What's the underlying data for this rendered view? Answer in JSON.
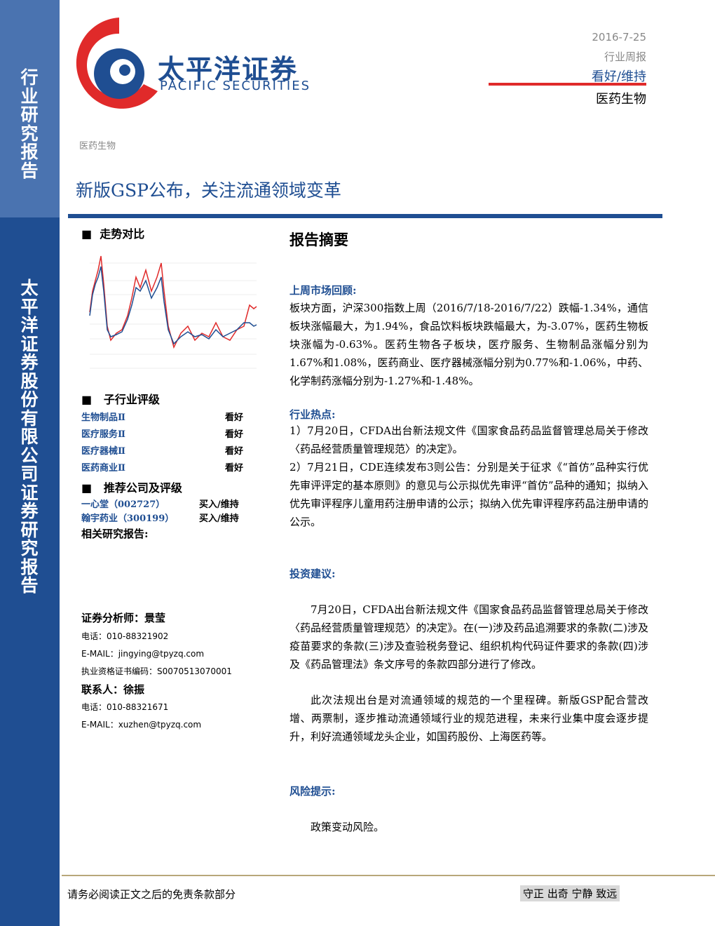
{
  "sidebar": {
    "top": "行业研究报告",
    "bottom": "太平洋证券股份有限公司证券研究报告"
  },
  "logo": {
    "cn": "太平洋证券",
    "en": "PACIFIC SECURITIES"
  },
  "header": {
    "date": "2016-7-25",
    "type": "行业周报",
    "rating": "看好/维持",
    "sector": "医药生物"
  },
  "breadcrumb": "医药生物",
  "title": "新版GSP公布，关注流通领域变革",
  "left": {
    "trend_title": "走势对比",
    "sub_industry": {
      "title": "子行业评级",
      "rows": [
        [
          "生物制品Ⅱ",
          "看好"
        ],
        [
          "医疗服务Ⅱ",
          "看好"
        ],
        [
          "医疗器械Ⅱ",
          "看好"
        ],
        [
          "医药商业Ⅱ",
          "看好"
        ]
      ]
    },
    "companies": {
      "title": "推荐公司及评级",
      "rows": [
        [
          "一心堂（002727）",
          "买入/维持"
        ],
        [
          "翰宇药业（300199）",
          "买入/维持"
        ]
      ]
    },
    "related": "相关研究报告:",
    "analyst": {
      "title": "证券分析师：景莹",
      "lines": [
        "电话：010-88321902",
        "E-MAIL：jingying@tpyzq.com",
        "执业资格证书编码：S0070513070001"
      ]
    },
    "contact": {
      "title": "联系人：徐振",
      "lines": [
        "电话：010-88321671",
        "E-MAIL：xuzhen@tpyzq.com"
      ]
    }
  },
  "main": {
    "heading": "报告摘要",
    "sections": [
      {
        "title": "上周市场回顾:",
        "paragraphs": [
          "板块方面，沪深300指数上周（2016/7/18-2016/7/22）跌幅-1.34%，通信板块涨幅最大，为1.94%，食品饮料板块跌幅最大，为-3.07%，医药生物板块涨幅为-0.63%。医药生物各子板块，医疗服务、生物制品涨幅分别为1.67%和1.08%，医药商业、医疗器械涨幅分别为0.77%和-1.06%，中药、化学制药涨幅分别为-1.27%和-1.48%。"
        ]
      },
      {
        "title": "行业热点:",
        "paragraphs": [
          "1）7月20日，CFDA出台新法规文件《国家食品药品监督管理总局关于修改〈药品经营质量管理规范〉的决定》。",
          "2）7月21日，CDE连续发布3则公告：分别是关于征求《“首仿”品种实行优先审评评定的基本原则》的意见与公示拟优先审评“首仿”品种的通知；拟纳入优先审评程序儿童用药注册申请的公示；拟纳入优先审评程序药品注册申请的公示。"
        ]
      },
      {
        "title": "投资建议:",
        "paragraphs": [
          "7月20日，CFDA出台新法规文件《国家食品药品监督管理总局关于修改〈药品经营质量管理规范〉的决定》。在(一)涉及药品追溯要求的条款(二)涉及疫苗要求的条款(三)涉及查验税务登记、组织机构代码证件要求的条款(四)涉及《药品管理法》条文序号的条款四部分进行了修改。",
          "此次法规出台是对流通领域的规范的一个里程碑。新版GSP配合营改增、两票制，逐步推动流通领域行业的规范进程，未来行业集中度会逐步提升，利好流通领域龙头企业，如国药股份、上海医药等。"
        ]
      },
      {
        "title": "风险提示:",
        "paragraphs": [
          "政策变动风险。"
        ]
      }
    ]
  },
  "footer": {
    "left": "请务必阅读正文之后的免责条款部分",
    "right": "守正 出奇 宁静 致远"
  }
}
